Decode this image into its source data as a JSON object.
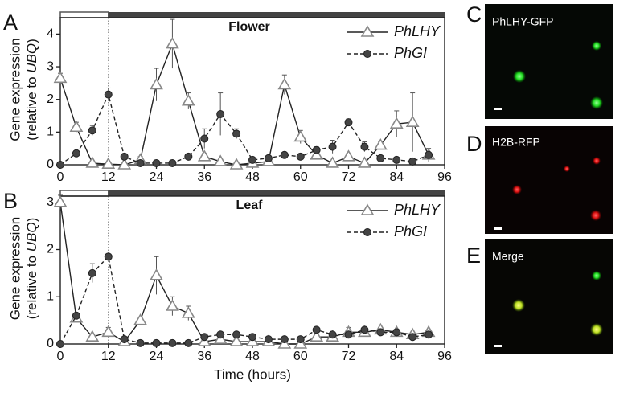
{
  "chart_data": [
    {
      "type": "line",
      "panel": "A",
      "title": "Flower",
      "ylabel": [
        "Gene expression",
        "(relative to ",
        "UBQ",
        ")"
      ],
      "x": [
        0,
        4,
        8,
        12,
        16,
        20,
        24,
        28,
        32,
        36,
        40,
        44,
        48,
        52,
        56,
        60,
        64,
        68,
        72,
        76,
        80,
        84,
        88,
        92
      ],
      "xlim": [
        0,
        96
      ],
      "xticks": [
        0,
        12,
        24,
        36,
        48,
        60,
        72,
        84,
        96
      ],
      "ylim": [
        0,
        4.6
      ],
      "yticks": [
        0,
        1,
        2,
        3,
        4
      ],
      "photoperiod": {
        "light": [
          0,
          12
        ],
        "dark": [
          12,
          96
        ]
      },
      "legend": "upper right",
      "series": [
        {
          "name": "PhLHY",
          "color": "#222222",
          "marker": "triangle",
          "line_style": "solid",
          "values": [
            2.65,
            1.15,
            0.05,
            0.02,
            0.0,
            0.15,
            2.45,
            3.7,
            1.95,
            0.25,
            0.1,
            0.0,
            0.05,
            0.1,
            2.45,
            0.85,
            0.3,
            0.05,
            0.25,
            0.05,
            0.6,
            1.25,
            1.3,
            0.3
          ],
          "errors": [
            0.15,
            0.15,
            0.05,
            0.05,
            0.05,
            0.1,
            0.5,
            0.75,
            0.25,
            0.1,
            0.05,
            0.05,
            0.05,
            0.05,
            0.3,
            0.2,
            0.1,
            0.05,
            0.1,
            0.05,
            0.1,
            0.4,
            0.9,
            0.2
          ]
        },
        {
          "name": "PhGI",
          "color": "#222222",
          "marker": "circle",
          "line_style": "dashed",
          "values": [
            0.0,
            0.35,
            1.05,
            2.15,
            0.25,
            0.05,
            0.05,
            0.05,
            0.25,
            0.8,
            1.55,
            0.95,
            0.15,
            0.2,
            0.3,
            0.25,
            0.45,
            0.55,
            1.3,
            0.55,
            0.2,
            0.15,
            0.1,
            0.3
          ],
          "errors": [
            0.02,
            0.05,
            0.15,
            0.2,
            0.05,
            0.02,
            0.02,
            0.02,
            0.05,
            0.3,
            0.65,
            0.15,
            0.05,
            0.05,
            0.05,
            0.05,
            0.1,
            0.2,
            0.1,
            0.15,
            0.05,
            0.05,
            0.05,
            0.05
          ]
        }
      ]
    },
    {
      "type": "line",
      "panel": "B",
      "title": "Leaf",
      "ylabel": [
        "Gene expression",
        "(relative to ",
        "UBQ",
        ")"
      ],
      "xlabel": "Time (hours)",
      "x": [
        0,
        4,
        8,
        12,
        16,
        20,
        24,
        28,
        32,
        36,
        40,
        44,
        48,
        52,
        56,
        60,
        64,
        68,
        72,
        76,
        80,
        84,
        88,
        92
      ],
      "xlim": [
        0,
        96
      ],
      "xticks": [
        0,
        12,
        24,
        36,
        48,
        60,
        72,
        84,
        96
      ],
      "ylim": [
        0,
        3.2
      ],
      "yticks": [
        0,
        1,
        2,
        3
      ],
      "photoperiod": {
        "light": [
          0,
          12
        ],
        "dark": [
          12,
          96
        ]
      },
      "legend": "upper right",
      "series": [
        {
          "name": "PhLHY",
          "color": "#222222",
          "marker": "triangle",
          "line_style": "solid",
          "values": [
            3.0,
            0.55,
            0.15,
            0.25,
            0.05,
            0.5,
            1.45,
            0.8,
            0.65,
            0.05,
            0.1,
            0.05,
            0.05,
            0.05,
            0.0,
            0.0,
            0.15,
            0.15,
            0.25,
            0.25,
            0.3,
            0.25,
            0.2,
            0.25
          ],
          "errors": [
            0.15,
            0.05,
            0.05,
            0.1,
            0.05,
            0.05,
            0.4,
            0.2,
            0.15,
            0.05,
            0.05,
            0.05,
            0.05,
            0.05,
            0.02,
            0.02,
            0.05,
            0.05,
            0.1,
            0.05,
            0.05,
            0.05,
            0.05,
            0.05
          ]
        },
        {
          "name": "PhGI",
          "color": "#222222",
          "marker": "circle",
          "line_style": "dashed",
          "values": [
            0.0,
            0.6,
            1.5,
            1.85,
            0.1,
            0.02,
            0.02,
            0.02,
            0.02,
            0.15,
            0.2,
            0.2,
            0.15,
            0.1,
            0.1,
            0.1,
            0.3,
            0.2,
            0.2,
            0.3,
            0.25,
            0.25,
            0.15,
            0.2
          ],
          "errors": [
            0.02,
            0.05,
            0.2,
            0.05,
            0.02,
            0.02,
            0.02,
            0.02,
            0.02,
            0.05,
            0.05,
            0.05,
            0.05,
            0.05,
            0.05,
            0.05,
            0.05,
            0.05,
            0.05,
            0.05,
            0.05,
            0.05,
            0.05,
            0.05
          ]
        }
      ]
    }
  ],
  "images": [
    {
      "label": "C",
      "caption": "PhLHY-GFP"
    },
    {
      "label": "D",
      "caption": "H2B-RFP"
    },
    {
      "label": "E",
      "caption": "Merge"
    }
  ]
}
